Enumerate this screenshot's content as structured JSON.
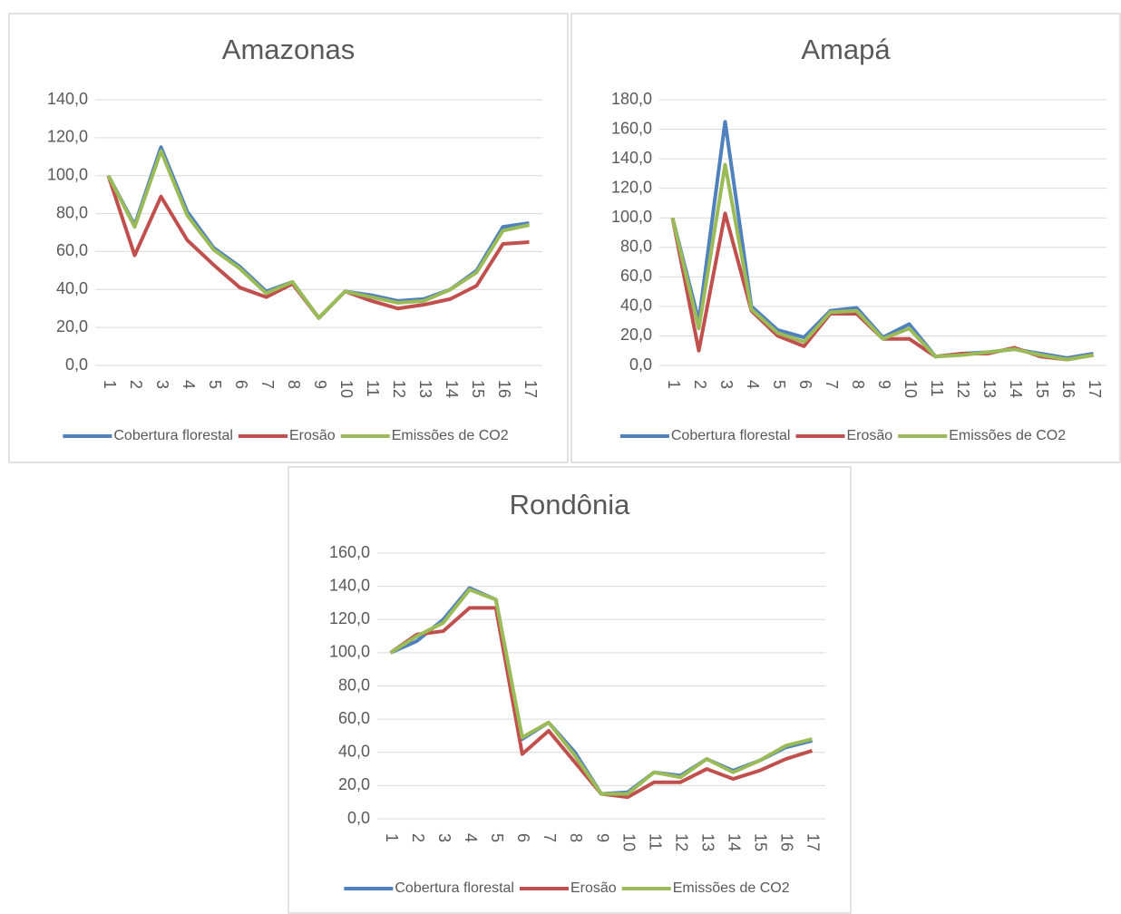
{
  "chart_data": [
    {
      "type": "line",
      "title": "Amazonas",
      "categories": [
        "1",
        "2",
        "3",
        "4",
        "5",
        "6",
        "7",
        "8",
        "9",
        "10",
        "11",
        "12",
        "13",
        "14",
        "15",
        "16",
        "17"
      ],
      "series": [
        {
          "name": "Cobertura florestal",
          "color": "#4f81bd",
          "values": [
            100,
            74,
            115,
            81,
            62,
            52,
            39,
            44,
            25,
            39,
            37,
            34,
            35,
            40,
            50,
            73,
            75
          ]
        },
        {
          "name": "Erosão",
          "color": "#c0504d",
          "values": [
            100,
            58,
            89,
            66,
            53,
            41,
            36,
            43,
            25,
            39,
            34,
            30,
            32,
            35,
            42,
            64,
            65
          ]
        },
        {
          "name": "Emissões de CO2",
          "color": "#9bbb59",
          "values": [
            100,
            73,
            113,
            79,
            61,
            51,
            38,
            44,
            25,
            39,
            36,
            33,
            34,
            40,
            49,
            71,
            74
          ]
        }
      ],
      "ylim": [
        0,
        140
      ],
      "yticks": [
        {
          "value": 0,
          "label": "0,0"
        },
        {
          "value": 20,
          "label": "20,0"
        },
        {
          "value": 40,
          "label": "40,0"
        },
        {
          "value": 60,
          "label": "60,0"
        },
        {
          "value": 80,
          "label": "80,0"
        },
        {
          "value": 100,
          "label": "100,0"
        },
        {
          "value": 120,
          "label": "120,0"
        },
        {
          "value": 140,
          "label": "140,0"
        }
      ],
      "grid": true,
      "legend": "bottom"
    },
    {
      "type": "line",
      "title": "Amapá",
      "categories": [
        "1",
        "2",
        "3",
        "4",
        "5",
        "6",
        "7",
        "8",
        "9",
        "10",
        "11",
        "12",
        "13",
        "14",
        "15",
        "16",
        "17"
      ],
      "series": [
        {
          "name": "Cobertura florestal",
          "color": "#4f81bd",
          "values": [
            100,
            30,
            165,
            40,
            24,
            19,
            37,
            39,
            19,
            28,
            6,
            8,
            9,
            11,
            8,
            5,
            8
          ]
        },
        {
          "name": "Erosão",
          "color": "#c0504d",
          "values": [
            100,
            10,
            103,
            37,
            20,
            13,
            35,
            35,
            18,
            18,
            6,
            8,
            8,
            12,
            6,
            4,
            7
          ]
        },
        {
          "name": "Emissões de CO2",
          "color": "#9bbb59",
          "values": [
            100,
            25,
            136,
            38,
            22,
            16,
            36,
            37,
            18,
            25,
            6,
            7,
            9,
            11,
            7,
            4,
            7
          ]
        }
      ],
      "ylim": [
        0,
        180
      ],
      "yticks": [
        {
          "value": 0,
          "label": "0,0"
        },
        {
          "value": 20,
          "label": "20,0"
        },
        {
          "value": 40,
          "label": "40,0"
        },
        {
          "value": 60,
          "label": "60,0"
        },
        {
          "value": 80,
          "label": "80,0"
        },
        {
          "value": 100,
          "label": "100,0"
        },
        {
          "value": 120,
          "label": "120,0"
        },
        {
          "value": 140,
          "label": "140,0"
        },
        {
          "value": 160,
          "label": "160,0"
        },
        {
          "value": 180,
          "label": "180,0"
        }
      ],
      "grid": true,
      "legend": "bottom"
    },
    {
      "type": "line",
      "title": "Rondônia",
      "categories": [
        "1",
        "2",
        "3",
        "4",
        "5",
        "6",
        "7",
        "8",
        "9",
        "10",
        "11",
        "12",
        "13",
        "14",
        "15",
        "16",
        "17"
      ],
      "series": [
        {
          "name": "Cobertura florestal",
          "color": "#4f81bd",
          "values": [
            100,
            107,
            120,
            139,
            132,
            48,
            58,
            40,
            15,
            16,
            28,
            26,
            36,
            29,
            35,
            43,
            47
          ]
        },
        {
          "name": "Erosão",
          "color": "#c0504d",
          "values": [
            100,
            111,
            113,
            127,
            127,
            39,
            53,
            34,
            15,
            13,
            22,
            22,
            30,
            24,
            29,
            36,
            41
          ]
        },
        {
          "name": "Emissões de CO2",
          "color": "#9bbb59",
          "values": [
            100,
            110,
            118,
            138,
            132,
            49,
            58,
            38,
            15,
            15,
            28,
            25,
            36,
            28,
            35,
            44,
            48
          ]
        }
      ],
      "ylim": [
        0,
        160
      ],
      "yticks": [
        {
          "value": 0,
          "label": "0,0"
        },
        {
          "value": 20,
          "label": "20,0"
        },
        {
          "value": 40,
          "label": "40,0"
        },
        {
          "value": 60,
          "label": "60,0"
        },
        {
          "value": 80,
          "label": "80,0"
        },
        {
          "value": 100,
          "label": "100,0"
        },
        {
          "value": 120,
          "label": "120,0"
        },
        {
          "value": 140,
          "label": "140,0"
        },
        {
          "value": 160,
          "label": "160,0"
        }
      ],
      "grid": true,
      "legend": "bottom"
    }
  ]
}
